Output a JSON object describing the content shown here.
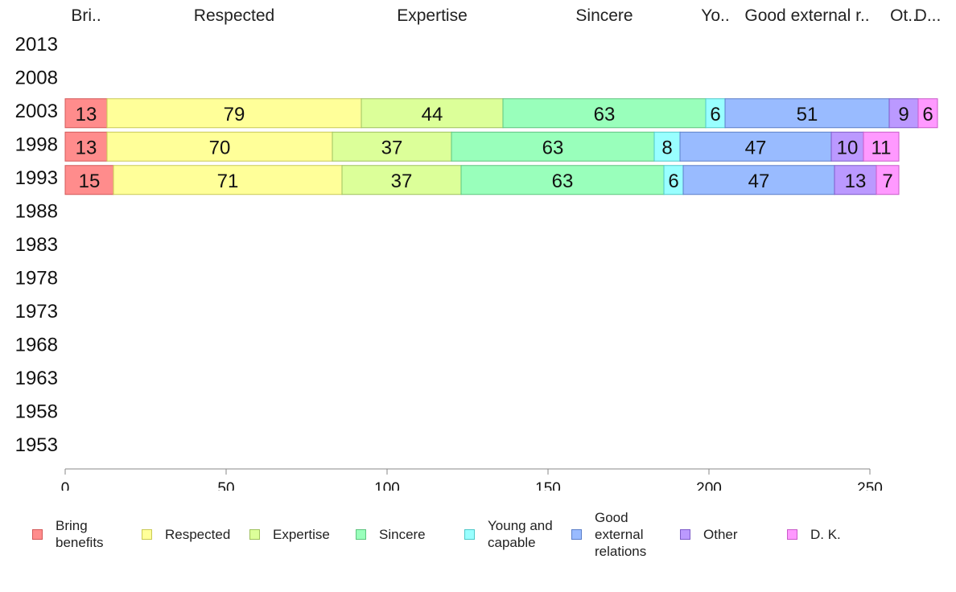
{
  "chart_data": {
    "type": "bar",
    "orientation": "horizontal",
    "stacked": true,
    "categories": [
      "2013",
      "2008",
      "2003",
      "1998",
      "1993",
      "1988",
      "1983",
      "1978",
      "1973",
      "1968",
      "1963",
      "1958",
      "1953"
    ],
    "series": [
      {
        "name": "Bring benefits",
        "header": "Bri..",
        "color": "#ff8c8c",
        "border": "#d35858",
        "values": [
          null,
          null,
          13,
          13,
          15,
          null,
          null,
          null,
          null,
          null,
          null,
          null,
          null
        ]
      },
      {
        "name": "Respected",
        "header": "Respected",
        "color": "#ffff99",
        "border": "#c9c955",
        "values": [
          null,
          null,
          79,
          70,
          71,
          null,
          null,
          null,
          null,
          null,
          null,
          null,
          null
        ]
      },
      {
        "name": "Expertise",
        "header": "Expertise",
        "color": "#dcff99",
        "border": "#9fc15e",
        "values": [
          null,
          null,
          44,
          37,
          37,
          null,
          null,
          null,
          null,
          null,
          null,
          null,
          null
        ]
      },
      {
        "name": "Sincere",
        "header": "Sincere",
        "color": "#99ffbb",
        "border": "#5ec47f",
        "values": [
          null,
          null,
          63,
          63,
          63,
          null,
          null,
          null,
          null,
          null,
          null,
          null,
          null
        ]
      },
      {
        "name": "Young and capable",
        "header": "Yo..",
        "color": "#99ffff",
        "border": "#4fc9c9",
        "values": [
          null,
          null,
          6,
          8,
          6,
          null,
          null,
          null,
          null,
          null,
          null,
          null,
          null
        ]
      },
      {
        "name": "Good external relations",
        "header": "Good external r..",
        "color": "#99bbff",
        "border": "#5b7fc9",
        "values": [
          null,
          null,
          51,
          47,
          47,
          null,
          null,
          null,
          null,
          null,
          null,
          null,
          null
        ]
      },
      {
        "name": "Other",
        "header": "Ot..",
        "color": "#bb99ff",
        "border": "#7e5bc9",
        "values": [
          null,
          null,
          9,
          10,
          13,
          null,
          null,
          null,
          null,
          null,
          null,
          null,
          null
        ]
      },
      {
        "name": "D. K.",
        "header": "D...",
        "color": "#ff99ff",
        "border": "#c95bc9",
        "values": [
          null,
          null,
          6,
          11,
          7,
          null,
          null,
          null,
          null,
          null,
          null,
          null,
          null
        ]
      }
    ],
    "xlim": [
      0,
      250
    ],
    "xticks": [
      0,
      50,
      100,
      150,
      200,
      250
    ],
    "legend_labels": [
      [
        "Bring",
        "benefits"
      ],
      [
        "Respected"
      ],
      [
        "Expertise"
      ],
      [
        "Sincere"
      ],
      [
        "Young and",
        "capable"
      ],
      [
        "Good",
        "external",
        "relations"
      ],
      [
        "Other"
      ],
      [
        "D. K."
      ]
    ],
    "legend_position": "bottom",
    "grid": false
  }
}
